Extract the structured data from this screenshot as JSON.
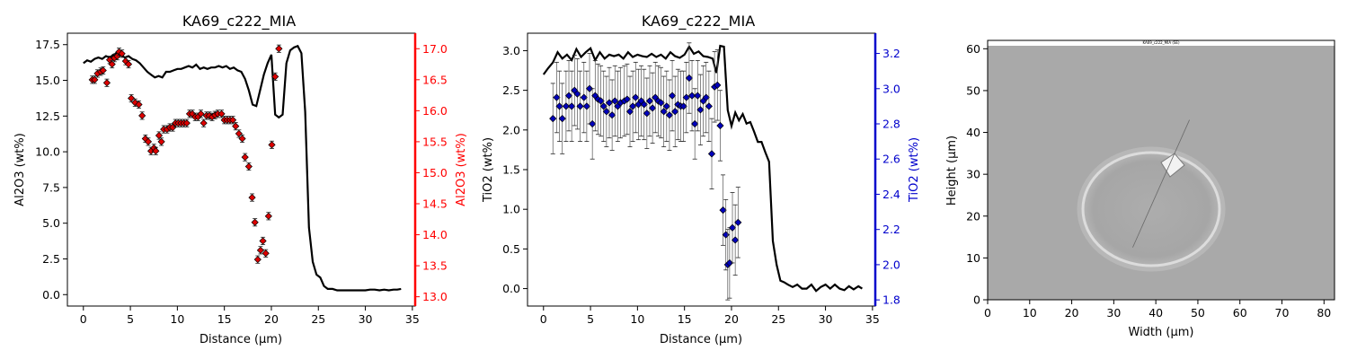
{
  "chart_data": [
    {
      "type": "line+scatter",
      "title": "KA69_c222_MIA",
      "xlabel": "Distance (µm)",
      "ylabel": "Al2O3 (wt%)",
      "y2label": "Al2O3 (wt%)",
      "xlim": [
        -1.7,
        35.3
      ],
      "ylim": [
        -0.8,
        18.3
      ],
      "y2lim": [
        12.85,
        17.25
      ],
      "xticks": [
        0,
        5,
        10,
        15,
        20,
        25,
        30,
        35
      ],
      "yticks": [
        0.0,
        2.5,
        5.0,
        7.5,
        10.0,
        12.5,
        15.0,
        17.5
      ],
      "y2ticks": [
        13.0,
        13.5,
        14.0,
        14.5,
        15.0,
        15.5,
        16.0,
        16.5,
        17.0
      ],
      "ytick_labels": [
        "0.0",
        "2.5",
        "5.0",
        "7.5",
        "10.0",
        "12.5",
        "15.0",
        "17.5"
      ],
      "y2tick_labels": [
        "13.0",
        "13.5",
        "14.0",
        "14.5",
        "15.0",
        "15.5",
        "16.0",
        "16.5",
        "17.0"
      ],
      "grid": false,
      "colors": {
        "line": "#000000",
        "marker": "#dd0000",
        "secondary_axis": "#ff0000"
      },
      "line": {
        "x": [
          0.0,
          0.4,
          0.8,
          1.2,
          1.6,
          2.0,
          2.4,
          2.8,
          3.2,
          3.6,
          4.0,
          4.4,
          4.8,
          5.2,
          5.6,
          6.0,
          6.4,
          6.8,
          7.2,
          7.6,
          8.0,
          8.4,
          8.8,
          9.2,
          9.6,
          10.0,
          10.4,
          10.8,
          11.2,
          11.6,
          12.0,
          12.4,
          12.8,
          13.2,
          13.6,
          14.0,
          14.4,
          14.8,
          15.2,
          15.6,
          16.0,
          16.4,
          16.8,
          17.2,
          17.6,
          18.0,
          18.4,
          18.8,
          19.2,
          19.6,
          20.0,
          20.4,
          20.8,
          21.2,
          21.6,
          22.0,
          22.4,
          22.8,
          23.2,
          23.6,
          24.0,
          24.4,
          24.8,
          25.2,
          25.6,
          26.0,
          26.5,
          27.0,
          27.5,
          28.0,
          28.5,
          29.0,
          29.5,
          30.0,
          30.5,
          31.0,
          31.5,
          32.0,
          32.5,
          33.0,
          33.4,
          33.8
        ],
        "y": [
          16.2,
          16.4,
          16.3,
          16.5,
          16.6,
          16.5,
          16.7,
          16.6,
          16.8,
          16.9,
          16.8,
          16.6,
          16.7,
          16.5,
          16.4,
          16.2,
          15.9,
          15.6,
          15.4,
          15.2,
          15.3,
          15.2,
          15.6,
          15.6,
          15.7,
          15.8,
          15.8,
          15.9,
          16.0,
          15.9,
          16.1,
          15.8,
          15.9,
          15.8,
          15.9,
          15.9,
          16.0,
          15.9,
          16.0,
          15.8,
          15.9,
          15.7,
          15.6,
          15.1,
          14.3,
          13.3,
          13.2,
          14.3,
          15.4,
          16.2,
          16.8,
          12.6,
          12.4,
          12.6,
          16.2,
          17.1,
          17.3,
          17.4,
          16.9,
          12.8,
          4.7,
          2.3,
          1.4,
          1.2,
          0.6,
          0.4,
          0.4,
          0.3,
          0.3,
          0.3,
          0.3,
          0.3,
          0.3,
          0.3,
          0.35,
          0.35,
          0.3,
          0.35,
          0.3,
          0.35,
          0.35,
          0.4
        ]
      },
      "markers": {
        "x": [
          0.95,
          1.2,
          1.5,
          1.85,
          2.1,
          2.5,
          2.8,
          3.05,
          3.3,
          3.6,
          3.8,
          4.1,
          4.5,
          4.8,
          5.1,
          5.5,
          5.9,
          6.25,
          6.6,
          6.9,
          7.2,
          7.5,
          7.7,
          8.05,
          8.3,
          8.55,
          8.9,
          9.2,
          9.5,
          9.8,
          10.1,
          10.4,
          10.7,
          11.0,
          11.3,
          11.6,
          11.9,
          12.2,
          12.5,
          12.8,
          13.1,
          13.4,
          13.7,
          14.0,
          14.3,
          14.7,
          15.0,
          15.3,
          15.6,
          15.9,
          16.2,
          16.55,
          16.9,
          17.2,
          17.6,
          17.95,
          18.25,
          18.55,
          18.85,
          19.1,
          19.4,
          19.7,
          20.05,
          20.4,
          20.8
        ],
        "y": [
          16.5,
          16.5,
          16.6,
          16.63,
          16.65,
          16.45,
          16.82,
          16.75,
          16.85,
          16.88,
          16.95,
          16.92,
          16.8,
          16.75,
          16.2,
          16.13,
          16.1,
          15.92,
          15.55,
          15.5,
          15.35,
          15.4,
          15.35,
          15.6,
          15.5,
          15.7,
          15.7,
          15.73,
          15.73,
          15.8,
          15.8,
          15.8,
          15.8,
          15.8,
          15.95,
          15.95,
          15.9,
          15.9,
          15.95,
          15.8,
          15.92,
          15.92,
          15.9,
          15.93,
          15.95,
          15.95,
          15.85,
          15.85,
          15.85,
          15.85,
          15.75,
          15.63,
          15.55,
          15.25,
          15.1,
          14.6,
          14.2,
          13.6,
          13.75,
          13.9,
          13.7,
          14.3,
          15.45,
          16.55,
          17.0
        ],
        "err": [
          0.06,
          0.06,
          0.06,
          0.06,
          0.06,
          0.06,
          0.06,
          0.06,
          0.06,
          0.06,
          0.06,
          0.06,
          0.06,
          0.06,
          0.06,
          0.06,
          0.06,
          0.06,
          0.06,
          0.06,
          0.06,
          0.06,
          0.06,
          0.06,
          0.06,
          0.06,
          0.06,
          0.06,
          0.06,
          0.06,
          0.06,
          0.06,
          0.06,
          0.06,
          0.06,
          0.06,
          0.06,
          0.06,
          0.06,
          0.06,
          0.06,
          0.06,
          0.06,
          0.06,
          0.06,
          0.06,
          0.06,
          0.06,
          0.06,
          0.06,
          0.06,
          0.06,
          0.06,
          0.06,
          0.06,
          0.06,
          0.06,
          0.06,
          0.06,
          0.06,
          0.06,
          0.06,
          0.06,
          0.06,
          0.06
        ]
      }
    },
    {
      "type": "line+scatter",
      "title": "KA69_c222_MIA",
      "xlabel": "Distance (µm)",
      "ylabel": "TiO2 (wt%)",
      "y2label": "TiO2 (wt%)",
      "xlim": [
        -1.7,
        35.3
      ],
      "ylim": [
        -0.22,
        3.22
      ],
      "y2lim": [
        1.765,
        3.315
      ],
      "xticks": [
        0,
        5,
        10,
        15,
        20,
        25,
        30,
        35
      ],
      "yticks": [
        0.0,
        0.5,
        1.0,
        1.5,
        2.0,
        2.5,
        3.0
      ],
      "y2ticks": [
        1.8,
        2.0,
        2.2,
        2.4,
        2.6,
        2.8,
        3.0,
        3.2
      ],
      "ytick_labels": [
        "0.0",
        "0.5",
        "1.0",
        "1.5",
        "2.0",
        "2.5",
        "3.0"
      ],
      "y2tick_labels": [
        "1.8",
        "2.0",
        "2.2",
        "2.4",
        "2.6",
        "2.8",
        "3.0",
        "3.2"
      ],
      "grid": false,
      "colors": {
        "line": "#000000",
        "marker": "#0000bb",
        "secondary_axis": "#0000cc"
      },
      "line": {
        "x": [
          0.0,
          0.5,
          1.0,
          1.5,
          2.0,
          2.5,
          3.0,
          3.5,
          4.0,
          4.5,
          5.0,
          5.5,
          6.0,
          6.5,
          7.0,
          7.5,
          8.0,
          8.5,
          9.0,
          9.5,
          10.0,
          10.5,
          11.0,
          11.5,
          12.0,
          12.5,
          13.0,
          13.5,
          14.0,
          14.5,
          15.0,
          15.5,
          16.0,
          16.5,
          17.0,
          17.5,
          18.0,
          18.4,
          18.8,
          19.2,
          19.6,
          20.0,
          20.4,
          20.8,
          21.2,
          21.6,
          22.0,
          22.4,
          22.8,
          23.2,
          23.6,
          24.0,
          24.4,
          24.8,
          25.2,
          25.6,
          26.0,
          26.5,
          27.0,
          27.5,
          28.0,
          28.5,
          29.0,
          29.5,
          30.0,
          30.5,
          31.0,
          31.5,
          32.0,
          32.5,
          33.0,
          33.5,
          33.9
        ],
        "y": [
          2.7,
          2.78,
          2.85,
          2.98,
          2.9,
          2.95,
          2.88,
          3.02,
          2.92,
          2.98,
          3.03,
          2.88,
          2.98,
          2.9,
          2.95,
          2.93,
          2.95,
          2.9,
          2.98,
          2.92,
          2.95,
          2.93,
          2.92,
          2.96,
          2.92,
          2.95,
          2.9,
          2.98,
          2.93,
          2.91,
          2.95,
          3.05,
          2.96,
          2.99,
          2.93,
          2.92,
          2.9,
          2.72,
          3.06,
          3.05,
          2.25,
          2.05,
          2.22,
          2.12,
          2.2,
          2.08,
          2.1,
          1.98,
          1.85,
          1.85,
          1.72,
          1.6,
          0.6,
          0.3,
          0.1,
          0.08,
          0.05,
          0.02,
          0.05,
          0.0,
          0.0,
          0.05,
          -0.03,
          0.02,
          0.05,
          0.0,
          0.05,
          0.0,
          -0.02,
          0.03,
          -0.01,
          0.03,
          0.0
        ]
      },
      "markers": {
        "x": [
          1.0,
          1.4,
          1.7,
          2.0,
          2.4,
          2.7,
          3.0,
          3.3,
          3.6,
          3.9,
          4.3,
          4.6,
          4.9,
          5.2,
          5.5,
          5.8,
          6.1,
          6.4,
          6.7,
          7.0,
          7.3,
          7.6,
          7.9,
          8.2,
          8.6,
          8.9,
          9.2,
          9.5,
          9.8,
          10.1,
          10.4,
          10.7,
          11.0,
          11.3,
          11.6,
          11.9,
          12.2,
          12.5,
          12.8,
          13.1,
          13.4,
          13.7,
          14.0,
          14.3,
          14.6,
          14.9,
          15.2,
          15.5,
          15.8,
          16.1,
          16.4,
          16.7,
          17.0,
          17.3,
          17.6,
          17.9,
          18.2,
          18.5,
          18.8,
          19.1,
          19.4,
          19.6,
          19.8,
          20.1,
          20.4,
          20.7
        ],
        "y": [
          2.83,
          2.95,
          2.9,
          2.83,
          2.9,
          2.96,
          2.9,
          2.99,
          2.97,
          2.9,
          2.95,
          2.9,
          3.0,
          2.8,
          2.96,
          2.94,
          2.93,
          2.9,
          2.87,
          2.92,
          2.85,
          2.93,
          2.9,
          2.92,
          2.93,
          2.94,
          2.87,
          2.9,
          2.95,
          2.91,
          2.93,
          2.91,
          2.86,
          2.93,
          2.89,
          2.95,
          2.93,
          2.92,
          2.87,
          2.9,
          2.85,
          2.96,
          2.87,
          2.91,
          2.9,
          2.9,
          2.95,
          3.06,
          2.96,
          2.8,
          2.96,
          2.88,
          2.93,
          2.95,
          2.9,
          2.63,
          3.01,
          3.02,
          2.79,
          2.31,
          2.17,
          2.0,
          2.01,
          2.21,
          2.14,
          2.24
        ],
        "err": [
          0.2,
          0.2,
          0.2,
          0.2,
          0.2,
          0.2,
          0.2,
          0.2,
          0.2,
          0.2,
          0.2,
          0.2,
          0.2,
          0.2,
          0.2,
          0.2,
          0.2,
          0.2,
          0.2,
          0.2,
          0.2,
          0.2,
          0.2,
          0.2,
          0.2,
          0.2,
          0.2,
          0.2,
          0.2,
          0.2,
          0.2,
          0.2,
          0.2,
          0.2,
          0.2,
          0.2,
          0.2,
          0.2,
          0.2,
          0.2,
          0.2,
          0.2,
          0.2,
          0.2,
          0.2,
          0.2,
          0.2,
          0.2,
          0.2,
          0.2,
          0.2,
          0.2,
          0.2,
          0.2,
          0.2,
          0.2,
          0.2,
          0.2,
          0.2,
          0.2,
          0.2,
          0.2,
          0.2,
          0.2,
          0.2,
          0.2
        ]
      }
    },
    {
      "type": "image",
      "title": "",
      "xlabel": "Width (µm)",
      "ylabel": "Height (µm)",
      "xlim": [
        0,
        82.5
      ],
      "ylim": [
        0,
        62
      ],
      "xticks": [
        0,
        10,
        20,
        30,
        40,
        50,
        60,
        70,
        80
      ],
      "yticks": [
        0,
        10,
        20,
        30,
        40,
        50,
        60
      ],
      "image_caption": "KA69_c222_MIA (SE)",
      "colors": {
        "background": "#a9a9a9",
        "rim": "#d6d6d6"
      },
      "profile_line": {
        "x": [
          34.5,
          48
        ],
        "y": [
          12.5,
          43
        ]
      }
    }
  ]
}
